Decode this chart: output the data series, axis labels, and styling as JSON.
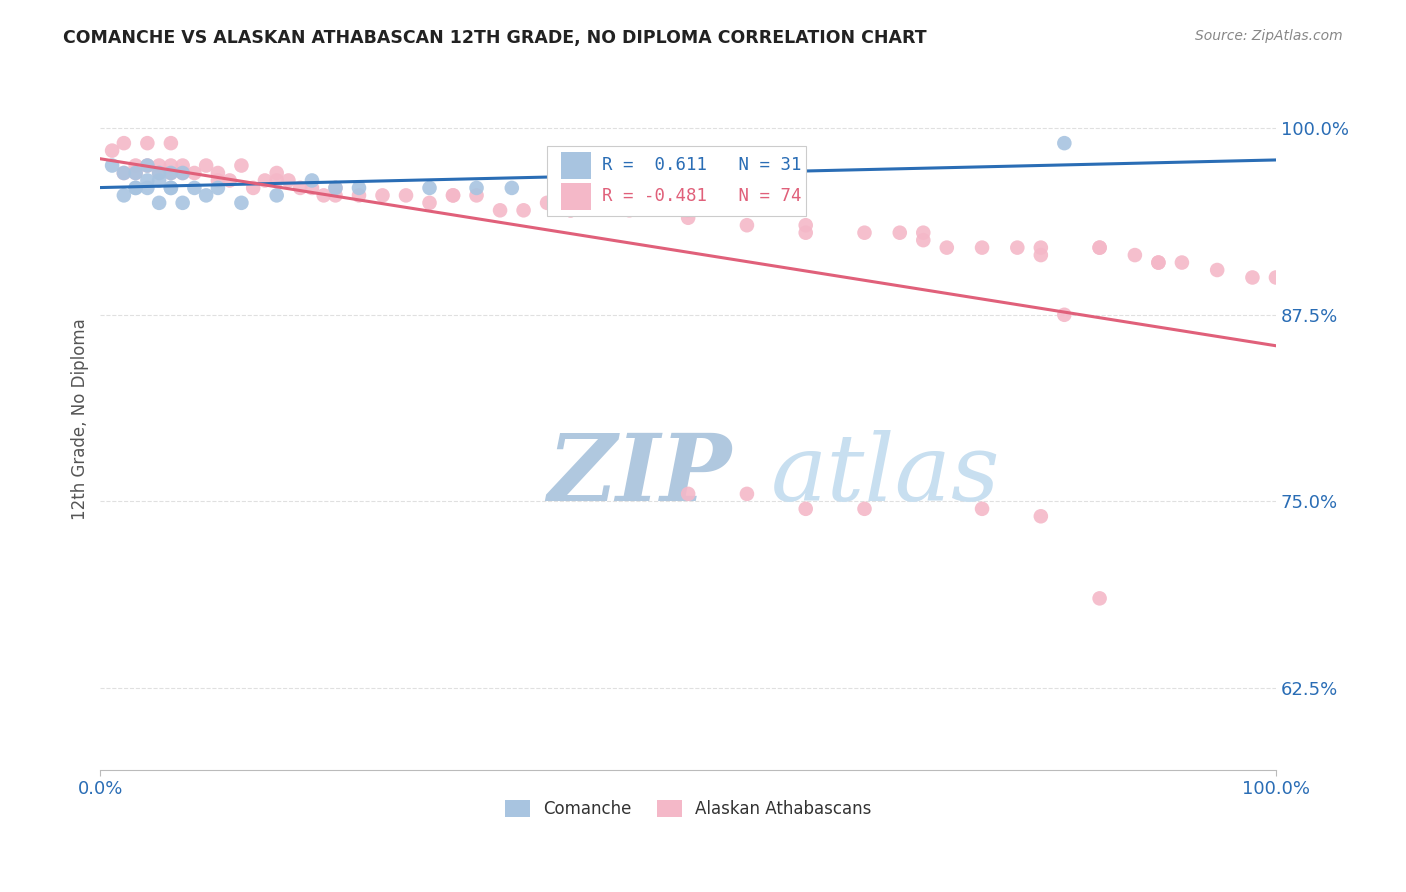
{
  "title": "COMANCHE VS ALASKAN ATHABASCAN 12TH GRADE, NO DIPLOMA CORRELATION CHART",
  "source": "Source: ZipAtlas.com",
  "ylabel": "12th Grade, No Diploma",
  "xlim": [
    0.0,
    1.0
  ],
  "ylim": [
    0.57,
    1.04
  ],
  "yticks": [
    0.625,
    0.75,
    0.875,
    1.0
  ],
  "ytick_labels": [
    "62.5%",
    "75.0%",
    "87.5%",
    "100.0%"
  ],
  "xtick_labels": [
    "0.0%",
    "100.0%"
  ],
  "comanche_R": 0.611,
  "comanche_N": 31,
  "alaskan_R": -0.481,
  "alaskan_N": 74,
  "comanche_color": "#a8c4e0",
  "alaskan_color": "#f4b8c8",
  "comanche_line_color": "#2a6db5",
  "alaskan_line_color": "#e0607a",
  "title_color": "#222222",
  "axis_label_color": "#555555",
  "tick_label_color": "#2a6db5",
  "grid_color": "#e0e0e0",
  "watermark_zip_color": "#c8dff0",
  "watermark_atlas_color": "#dce8f5",
  "comanche_x": [
    0.01,
    0.02,
    0.02,
    0.03,
    0.03,
    0.03,
    0.04,
    0.04,
    0.04,
    0.05,
    0.05,
    0.05,
    0.06,
    0.06,
    0.06,
    0.07,
    0.07,
    0.08,
    0.09,
    0.1,
    0.12,
    0.15,
    0.18,
    0.22,
    0.28,
    0.35,
    0.42,
    0.32,
    0.2,
    0.82,
    0.4
  ],
  "comanche_y": [
    0.975,
    0.955,
    0.97,
    0.96,
    0.96,
    0.97,
    0.965,
    0.975,
    0.96,
    0.97,
    0.965,
    0.95,
    0.97,
    0.96,
    0.96,
    0.97,
    0.95,
    0.96,
    0.955,
    0.96,
    0.95,
    0.955,
    0.965,
    0.96,
    0.96,
    0.96,
    0.965,
    0.96,
    0.96,
    0.99,
    0.965
  ],
  "alaskan_x": [
    0.01,
    0.02,
    0.02,
    0.03,
    0.03,
    0.04,
    0.04,
    0.05,
    0.05,
    0.06,
    0.06,
    0.06,
    0.07,
    0.08,
    0.09,
    0.1,
    0.11,
    0.12,
    0.13,
    0.14,
    0.15,
    0.16,
    0.17,
    0.18,
    0.19,
    0.2,
    0.22,
    0.24,
    0.26,
    0.28,
    0.3,
    0.32,
    0.34,
    0.36,
    0.38,
    0.4,
    0.45,
    0.5,
    0.55,
    0.6,
    0.65,
    0.68,
    0.7,
    0.72,
    0.75,
    0.78,
    0.8,
    0.85,
    0.88,
    0.9,
    0.92,
    0.95,
    0.98,
    1.0,
    0.07,
    0.1,
    0.15,
    0.2,
    0.3,
    0.4,
    0.5,
    0.6,
    0.7,
    0.8,
    0.85,
    0.9,
    0.5,
    0.55,
    0.6,
    0.65,
    0.75,
    0.8,
    0.85,
    0.82
  ],
  "alaskan_y": [
    0.985,
    0.97,
    0.99,
    0.975,
    0.97,
    0.99,
    0.975,
    0.975,
    0.97,
    0.99,
    0.975,
    0.97,
    0.975,
    0.97,
    0.975,
    0.97,
    0.965,
    0.975,
    0.96,
    0.965,
    0.97,
    0.965,
    0.96,
    0.96,
    0.955,
    0.96,
    0.955,
    0.955,
    0.955,
    0.95,
    0.955,
    0.955,
    0.945,
    0.945,
    0.95,
    0.945,
    0.945,
    0.945,
    0.935,
    0.93,
    0.93,
    0.93,
    0.925,
    0.92,
    0.92,
    0.92,
    0.915,
    0.92,
    0.915,
    0.91,
    0.91,
    0.905,
    0.9,
    0.9,
    0.97,
    0.965,
    0.965,
    0.955,
    0.955,
    0.945,
    0.94,
    0.935,
    0.93,
    0.92,
    0.92,
    0.91,
    0.755,
    0.755,
    0.745,
    0.745,
    0.745,
    0.74,
    0.685,
    0.875
  ]
}
